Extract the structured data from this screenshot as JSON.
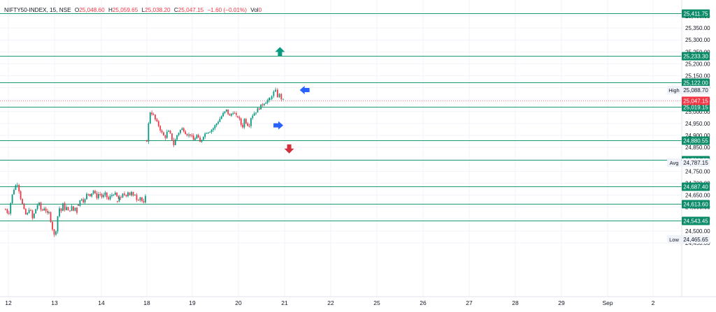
{
  "header": {
    "symbol": "NIFTY50-INDEX, 15, NSE",
    "o_label": "O",
    "o_value": "25,048.60",
    "h_label": "H",
    "h_value": "25,059.65",
    "l_label": "L",
    "l_value": "25,038.20",
    "c_label": "C",
    "c_value": "25,047.15",
    "change": "−1.60 (−0.01%)",
    "vol_label": "Vol",
    "vol_value": "0"
  },
  "colors": {
    "up": "#089981",
    "down": "#f23645",
    "level_line": "#1a9a74",
    "level_badge": "#0b8b68",
    "price_badge": "#f23645",
    "arrow_blue": "#2962ff",
    "arrow_green": "#089981",
    "arrow_red": "#d32f3b",
    "grid": "#f0f3fa",
    "axis_text": "#131722"
  },
  "chart_data": {
    "type": "candlestick",
    "timeframe": "15",
    "x_ticks": [
      "12",
      "13",
      "14",
      "18",
      "19",
      "20",
      "21",
      "22",
      "25",
      "26",
      "27",
      "28",
      "29",
      "Sep",
      "2"
    ],
    "y_ticks": [
      "24,450.00",
      "24,500.00",
      "24,550.00",
      "24,600.00",
      "24,650.00",
      "24,700.00",
      "24,750.00",
      "24,800.00",
      "24,850.00",
      "24,900.00",
      "24,950.00",
      "25,000.00",
      "25,050.00",
      "25,100.00",
      "25,150.00",
      "25,200.00",
      "25,250.00",
      "25,300.00",
      "25,350.00",
      "25,400.00"
    ],
    "ylim": [
      24440,
      25440
    ],
    "levels": [
      {
        "value": 25411.75,
        "label": "25,411.75"
      },
      {
        "value": 25233.3,
        "label": "25,233.30"
      },
      {
        "value": 25122.0,
        "label": "25,122.00"
      },
      {
        "value": 25019.15,
        "label": "25,019.15"
      },
      {
        "value": 24880.55,
        "label": "24,880.55"
      },
      {
        "value": 24796.6,
        "label": "24,796.60"
      },
      {
        "value": 24687.4,
        "label": "24,687.40"
      },
      {
        "value": 24613.6,
        "label": "24,613.60"
      },
      {
        "value": 24543.45,
        "label": "24,543.45"
      }
    ],
    "last_price": {
      "value": 25047.15,
      "label": "25,047.15"
    },
    "stats": [
      {
        "name": "High",
        "value": 25088.7,
        "label": "25,088.70"
      },
      {
        "name": "Avg",
        "value": 24787.15,
        "label": "24,787.15"
      },
      {
        "name": "Low",
        "value": 24465.65,
        "label": "24,465.65"
      }
    ],
    "arrows": [
      {
        "direction": "up",
        "color": "arrow_green",
        "x": 20.9,
        "y": 25250
      },
      {
        "direction": "left",
        "color": "arrow_blue",
        "x": 21.45,
        "y": 25090
      },
      {
        "direction": "right",
        "color": "arrow_blue",
        "x": 20.85,
        "y": 24942
      },
      {
        "direction": "down",
        "color": "arrow_red",
        "x": 21.1,
        "y": 24845
      }
    ],
    "sessions": [
      {
        "day": "12",
        "path": [
          24590,
          24570,
          24640,
          24685,
          24700,
          24640,
          24590,
          24560,
          24600,
          24550,
          24590,
          24620,
          24580,
          24600,
          24570
        ]
      },
      {
        "day": "13",
        "path": [
          24575,
          24540,
          24500,
          24470,
          24540,
          24600,
          24580,
          24610,
          24590,
          24600,
          24570,
          24610,
          24580,
          24600,
          24580
        ]
      },
      {
        "day": "14",
        "path": [
          24610,
          24640,
          24620,
          24660,
          24650,
          24670,
          24640,
          24660,
          24640,
          24655,
          24630,
          24650,
          24660,
          24640,
          24625
        ]
      },
      {
        "day": "16",
        "path": [
          24625,
          24650,
          24630,
          24665,
          24640,
          24670,
          24650,
          24660,
          24640,
          24660,
          24620,
          24650,
          24630,
          24610,
          24640
        ]
      },
      {
        "day": "18",
        "path": [
          24880,
          25000,
          24990,
          24960,
          24940,
          24910,
          24890,
          24920,
          24900,
          24860,
          24900,
          24920,
          24930,
          24910,
          24900
        ]
      },
      {
        "day": "19",
        "path": [
          24905,
          24880,
          24900,
          24870,
          24900,
          24915,
          24920,
          24930,
          24950,
          24970,
          24990,
          25005,
          24980,
          25000,
          24980
        ]
      },
      {
        "day": "20",
        "path": [
          24980,
          24960,
          24930,
          24970,
          24950,
          24940,
          24980,
          24990,
          25000,
          25010,
          25020,
          25030,
          25040,
          25045,
          25050
        ]
      },
      {
        "day": "21",
        "path": [
          25050,
          25060,
          25070,
          25075,
          25080,
          25070,
          25085,
          25078,
          25065,
          25088,
          25070,
          25062,
          25055,
          25059,
          25047
        ]
      }
    ]
  }
}
